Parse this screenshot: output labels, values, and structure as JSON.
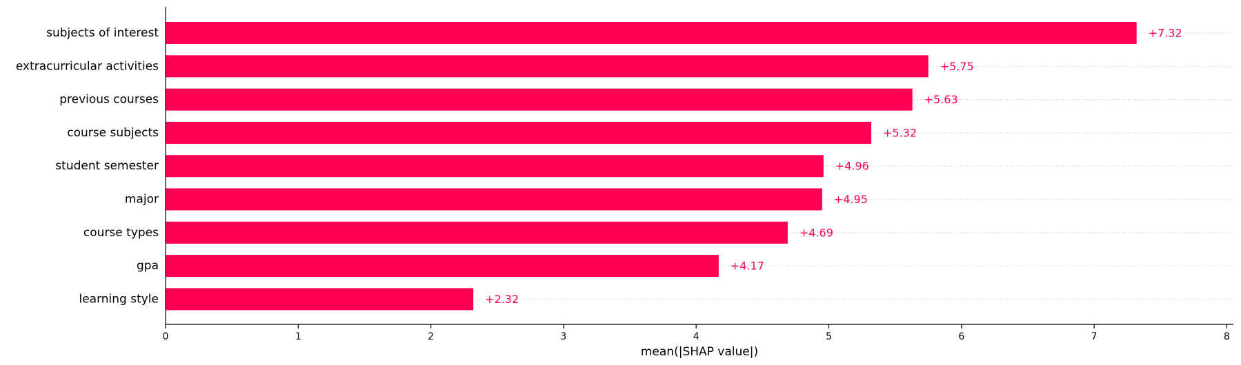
{
  "colors": {
    "bar": "#ff0051",
    "label": "#ff0051",
    "axis": "#000000",
    "gridline": "#cccccc"
  },
  "chart_data": {
    "type": "bar",
    "orientation": "horizontal",
    "categories": [
      "subjects of interest",
      "extracurricular activities",
      "previous courses",
      "course subjects",
      "student semester",
      "major",
      "course types",
      "gpa",
      "learning style"
    ],
    "values": [
      7.32,
      5.75,
      5.63,
      5.32,
      4.96,
      4.95,
      4.69,
      4.17,
      2.32
    ],
    "value_labels": [
      "+7.32",
      "+5.75",
      "+5.63",
      "+5.32",
      "+4.96",
      "+4.95",
      "+4.69",
      "+4.17",
      "+2.32"
    ],
    "xlabel": "mean(|SHAP value|)",
    "ylabel": "",
    "xlim": [
      0,
      8.05
    ],
    "xticks": [
      0,
      1,
      2,
      3,
      4,
      5,
      6,
      7,
      8
    ],
    "grid": "dotted row guides",
    "legend": "none"
  }
}
